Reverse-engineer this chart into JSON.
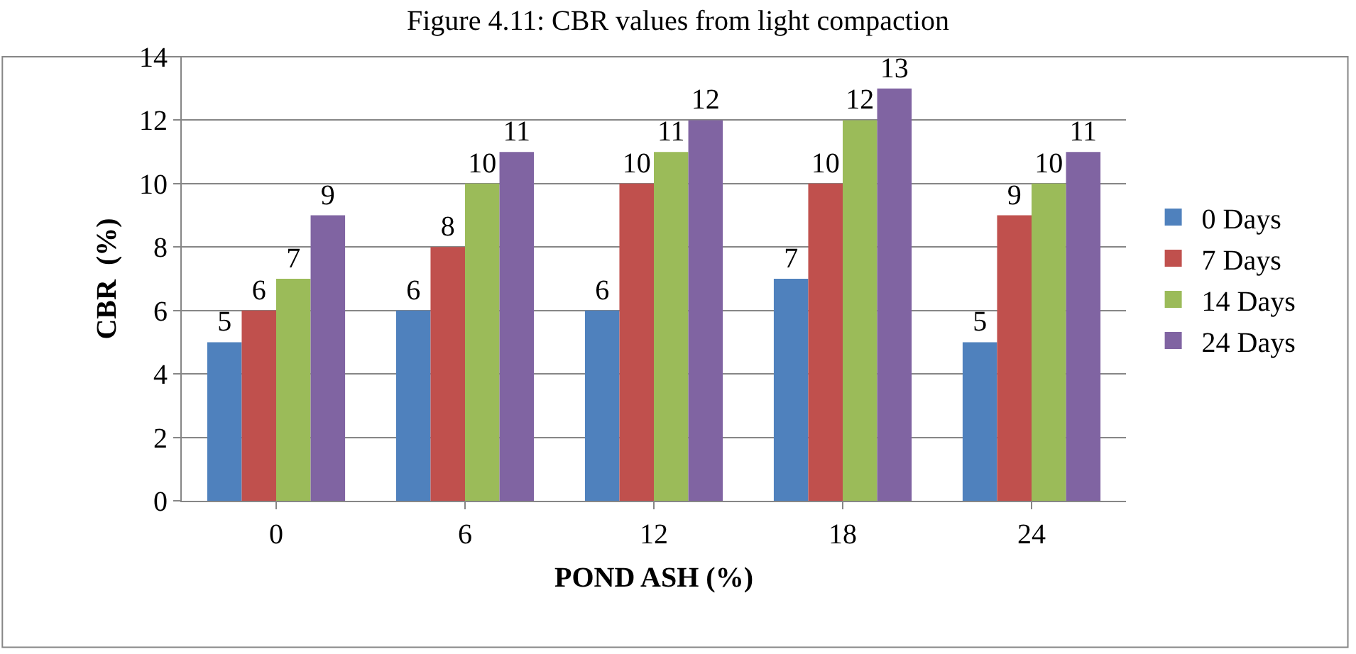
{
  "chart_data": {
    "type": "bar",
    "title": "Figure 4.11: CBR values from light compaction",
    "xlabel": "POND ASH (%)",
    "ylabel": "CBR  (%)",
    "categories": [
      "0",
      "6",
      "12",
      "18",
      "24"
    ],
    "series": [
      {
        "name": "0 Days",
        "color": "#4f81bd",
        "values": [
          5,
          6,
          6,
          7,
          5
        ]
      },
      {
        "name": "7 Days",
        "color": "#c0504d",
        "values": [
          6,
          8,
          10,
          10,
          9
        ]
      },
      {
        "name": "14 Days",
        "color": "#9bbb59",
        "values": [
          7,
          10,
          11,
          12,
          10
        ]
      },
      {
        "name": "24 Days",
        "color": "#8064a2",
        "values": [
          9,
          11,
          12,
          13,
          11
        ]
      }
    ],
    "ylim": [
      0,
      14
    ],
    "yticks": [
      0,
      2,
      4,
      6,
      8,
      10,
      12,
      14
    ],
    "grid": "y",
    "legend": "right",
    "data_labels": true
  }
}
